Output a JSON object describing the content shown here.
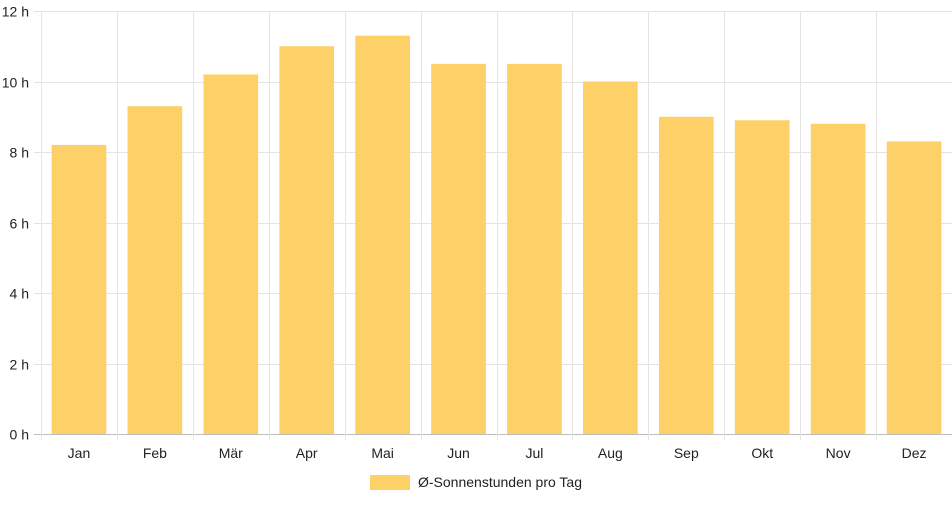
{
  "chart_data": {
    "type": "bar",
    "categories": [
      "Jan",
      "Feb",
      "Mär",
      "Apr",
      "Mai",
      "Jun",
      "Jul",
      "Aug",
      "Sep",
      "Okt",
      "Nov",
      "Dez"
    ],
    "series": [
      {
        "name": "Ø-Sonnenstunden pro Tag",
        "values": [
          8.2,
          9.3,
          10.2,
          11.0,
          11.3,
          10.5,
          10.5,
          10.0,
          9.0,
          8.9,
          8.8,
          8.3
        ],
        "color": "#fdd068"
      }
    ],
    "yticks": [
      "0 h",
      "2 h",
      "4 h",
      "6 h",
      "8 h",
      "10 h",
      "12 h"
    ],
    "ylim": [
      0,
      12
    ],
    "grid": true,
    "legend_position": "bottom-center"
  }
}
